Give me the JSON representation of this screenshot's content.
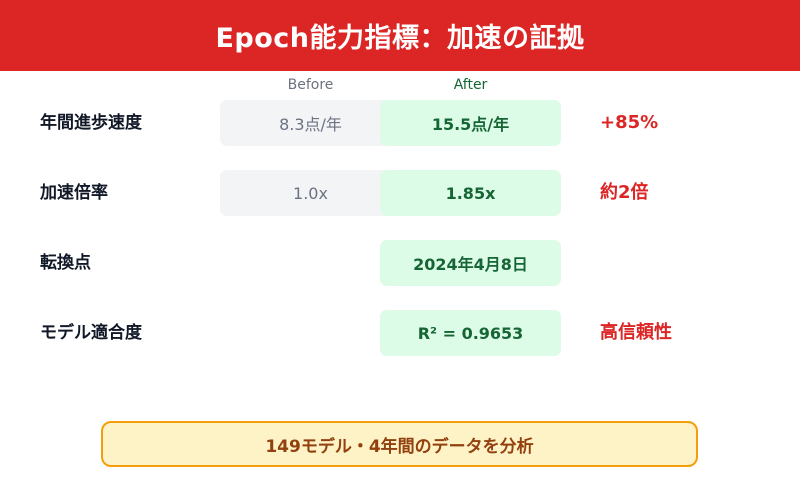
{
  "header": {
    "title": "Epoch能力指標：加速の証拠"
  },
  "columns": {
    "before": "Before",
    "after": "After"
  },
  "rows": [
    {
      "label": "年間進歩速度",
      "before": "8.3点/年",
      "after": "15.5点/年",
      "note": "+85%"
    },
    {
      "label": "加速倍率",
      "before": "1.0x",
      "after": "1.85x",
      "note": "約2倍"
    },
    {
      "label": "転換点",
      "after": "2024年4月8日"
    },
    {
      "label": "モデル適合度",
      "after": "R² = 0.9653",
      "note": "高信頼性"
    }
  ],
  "footer": {
    "text": "149モデル・4年間のデータを分析"
  },
  "colors": {
    "header_bg": "#dc2626",
    "before_bg": "#f3f4f6",
    "after_bg": "#dcfce7",
    "after_text": "#166534",
    "note_text": "#dc2626",
    "footer_bg": "#fef3c7",
    "footer_border": "#f59e0b"
  }
}
